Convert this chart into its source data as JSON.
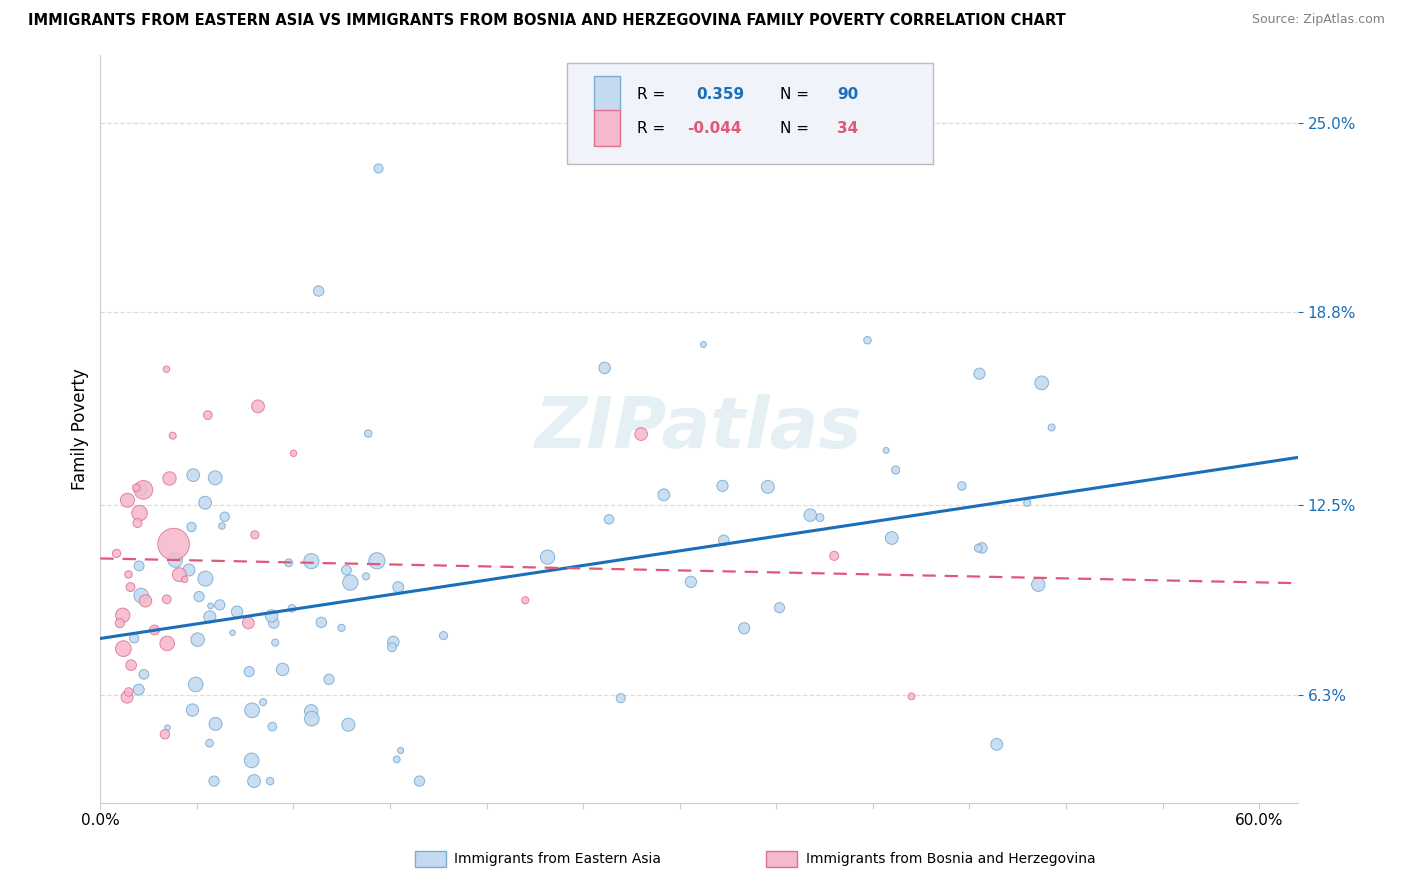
{
  "title": "IMMIGRANTS FROM EASTERN ASIA VS IMMIGRANTS FROM BOSNIA AND HERZEGOVINA FAMILY POVERTY CORRELATION CHART",
  "source": "Source: ZipAtlas.com",
  "ylabel": "Family Poverty",
  "xlim": [
    0.0,
    0.62
  ],
  "ylim": [
    0.028,
    0.272
  ],
  "yticks": [
    0.063,
    0.125,
    0.188,
    0.25
  ],
  "ytick_labels": [
    "6.3%",
    "12.5%",
    "18.8%",
    "25.0%"
  ],
  "xticks": [
    0.0,
    0.6
  ],
  "xtick_labels": [
    "0.0%",
    "60.0%"
  ],
  "color_blue": "#c5daf0",
  "color_blue_edge": "#7aadd4",
  "color_pink": "#f5b8cc",
  "color_pink_edge": "#e07090",
  "color_blue_line": "#1a6fba",
  "color_pink_line": "#e05878",
  "watermark": "ZIPatlas",
  "series1_label": "Immigrants from Eastern Asia",
  "series2_label": "Immigrants from Bosnia and Herzegovina",
  "blue_R": 0.359,
  "blue_N": 90,
  "pink_R": -0.044,
  "pink_N": 34,
  "legend_box_color": "#f0f4fa",
  "legend_border": "#bbbbbb",
  "grid_color": "#dddddd",
  "spine_color": "#cccccc"
}
